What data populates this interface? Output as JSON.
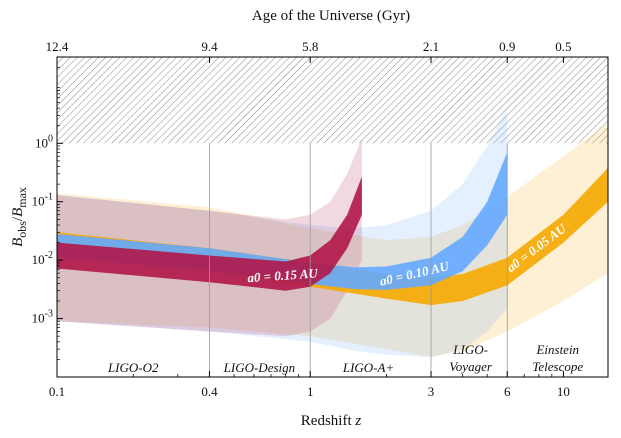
{
  "chart_data": {
    "type": "area",
    "xlabel": "Redshift z",
    "ylabel": "B_obs / B_max",
    "top_axis_label": "Age of the Universe (Gyr)",
    "x_scale": "log",
    "y_scale": "log",
    "xlim": [
      0.1,
      15
    ],
    "ylim": [
      0.0001,
      30
    ],
    "x_ticks": [
      {
        "value": 0.1,
        "label": "0.1"
      },
      {
        "value": 0.4,
        "label": "0.4"
      },
      {
        "value": 1,
        "label": "1"
      },
      {
        "value": 3,
        "label": "3"
      },
      {
        "value": 6,
        "label": "6"
      },
      {
        "value": 10,
        "label": "10"
      }
    ],
    "y_ticks": [
      {
        "value": 0.001,
        "mantissa": "10",
        "exp": "-3"
      },
      {
        "value": 0.01,
        "mantissa": "10",
        "exp": "-2"
      },
      {
        "value": 0.1,
        "mantissa": "10",
        "exp": "-1"
      },
      {
        "value": 1,
        "mantissa": "10",
        "exp": "0"
      }
    ],
    "top_ticks": [
      {
        "z": 0.1,
        "label": "12.4"
      },
      {
        "z": 0.4,
        "label": "9.4"
      },
      {
        "z": 1.0,
        "label": "5.8"
      },
      {
        "z": 3.0,
        "label": "2.1"
      },
      {
        "z": 6.0,
        "label": "0.9"
      },
      {
        "z": 10.0,
        "label": "0.5"
      }
    ],
    "excluded_region": {
      "y_min": 1,
      "pattern": "hatched"
    },
    "dividers_z": [
      0.4,
      1.0,
      3.0,
      6.0
    ],
    "detectors": [
      {
        "lines": [
          "LIGO-O2"
        ],
        "z": 0.2,
        "y": 0.0003
      },
      {
        "lines": [
          "LIGO-Design"
        ],
        "z": 0.63,
        "y": 0.0003
      },
      {
        "lines": [
          "LIGO-A+"
        ],
        "z": 1.7,
        "y": 0.0003
      },
      {
        "lines": [
          "LIGO-",
          "Voyager"
        ],
        "z": 4.3,
        "y": 0.0003
      },
      {
        "lines": [
          "Einstein",
          "Telescope"
        ],
        "z": 9.5,
        "y": 0.0003
      }
    ],
    "series": [
      {
        "name": "a0 = 0.05 AU",
        "color": "#f5a800",
        "z": [
          0.1,
          0.4,
          1,
          2,
          3,
          4,
          6,
          10,
          15
        ],
        "outer_upper": [
          0.14,
          0.08,
          0.035,
          0.022,
          0.025,
          0.04,
          0.12,
          0.6,
          2.2
        ],
        "outer_lower": [
          0.0009,
          0.0007,
          0.0005,
          0.0003,
          0.00022,
          0.00028,
          0.0006,
          0.002,
          0.006
        ],
        "upper": [
          0.03,
          0.016,
          0.009,
          0.0058,
          0.005,
          0.0058,
          0.011,
          0.06,
          0.38
        ],
        "lower": [
          0.012,
          0.0065,
          0.0035,
          0.0022,
          0.0017,
          0.002,
          0.0037,
          0.02,
          0.1
        ]
      },
      {
        "name": "a0 = 0.10 AU",
        "color": "#64a8ff",
        "z": [
          0.1,
          0.4,
          1,
          1.5,
          2,
          3,
          4,
          5,
          6
        ],
        "outer_upper": [
          0.13,
          0.07,
          0.04,
          0.035,
          0.04,
          0.07,
          0.2,
          0.9,
          4
        ],
        "outer_lower": [
          0.0009,
          0.0006,
          0.0004,
          0.00028,
          0.00024,
          0.00022,
          0.0003,
          0.0006,
          0.0015
        ],
        "upper": [
          0.028,
          0.016,
          0.009,
          0.0075,
          0.0078,
          0.011,
          0.025,
          0.1,
          0.7
        ],
        "lower": [
          0.011,
          0.0065,
          0.0039,
          0.0032,
          0.0031,
          0.0037,
          0.0065,
          0.018,
          0.06
        ]
      },
      {
        "name": "a0 = 0.15 AU",
        "color": "#b0174a",
        "z": [
          0.1,
          0.4,
          0.8,
          1,
          1.2,
          1.4,
          1.6
        ],
        "outer_upper": [
          0.13,
          0.07,
          0.05,
          0.06,
          0.1,
          0.3,
          1.2
        ],
        "outer_lower": [
          0.0009,
          0.0006,
          0.0005,
          0.0006,
          0.001,
          0.003,
          0.01
        ],
        "upper": [
          0.02,
          0.012,
          0.0095,
          0.012,
          0.022,
          0.06,
          0.27
        ],
        "lower": [
          0.0072,
          0.0042,
          0.003,
          0.0035,
          0.006,
          0.016,
          0.06
        ]
      }
    ],
    "grid": false,
    "legend": "none (inline band labels)"
  }
}
